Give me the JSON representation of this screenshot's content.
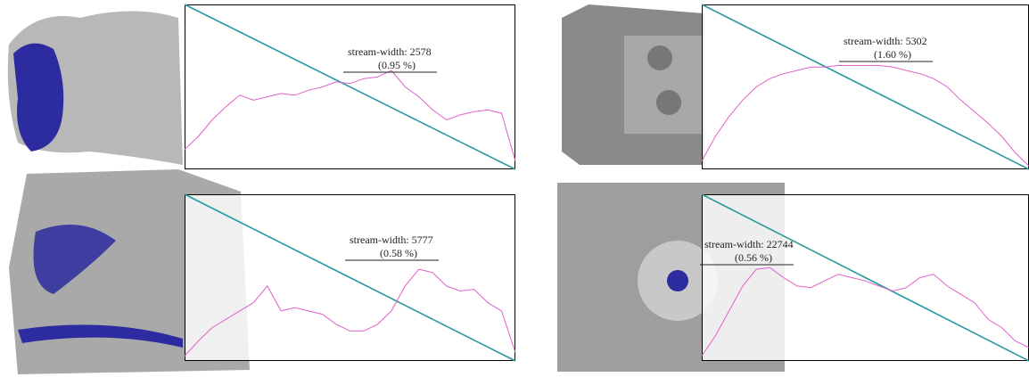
{
  "chart_data": [
    {
      "type": "line",
      "annotation": [
        "stream-width: 2578",
        "(0.95 %)"
      ],
      "ylim": [
        0,
        1
      ],
      "reference_line": {
        "color": "#2a9a9c",
        "values": [
          1,
          0
        ]
      },
      "series": [
        {
          "color": "#e060c8",
          "values": [
            0.12,
            0.2,
            0.3,
            0.38,
            0.45,
            0.42,
            0.44,
            0.46,
            0.45,
            0.48,
            0.5,
            0.53,
            0.52,
            0.55,
            0.56,
            0.6,
            0.5,
            0.44,
            0.36,
            0.3,
            0.33,
            0.35,
            0.36,
            0.34,
            0.05
          ]
        }
      ]
    },
    {
      "type": "line",
      "annotation": [
        "stream-width: 5302",
        "(1.60 %)"
      ],
      "ylim": [
        0,
        1
      ],
      "reference_line": {
        "color": "#2a9a9c",
        "values": [
          1,
          0
        ]
      },
      "series": [
        {
          "color": "#e060c8",
          "values": [
            0.05,
            0.2,
            0.32,
            0.42,
            0.5,
            0.55,
            0.58,
            0.6,
            0.62,
            0.62,
            0.63,
            0.63,
            0.63,
            0.63,
            0.62,
            0.6,
            0.58,
            0.55,
            0.5,
            0.42,
            0.35,
            0.28,
            0.2,
            0.1,
            0.02
          ]
        }
      ]
    },
    {
      "type": "line",
      "annotation": [
        "stream-width: 5777",
        "(0.58 %)"
      ],
      "ylim": [
        0,
        1
      ],
      "reference_line": {
        "color": "#2a9a9c",
        "values": [
          1,
          0
        ]
      },
      "series": [
        {
          "color": "#e060c8",
          "values": [
            0.03,
            0.12,
            0.2,
            0.25,
            0.3,
            0.35,
            0.45,
            0.3,
            0.32,
            0.3,
            0.28,
            0.22,
            0.18,
            0.18,
            0.22,
            0.3,
            0.45,
            0.55,
            0.53,
            0.45,
            0.42,
            0.43,
            0.35,
            0.3,
            0.05
          ]
        }
      ]
    },
    {
      "type": "line",
      "annotation": [
        "stream-width: 22744",
        "(0.56 %)"
      ],
      "ylim": [
        0,
        1
      ],
      "reference_line": {
        "color": "#2a9a9c",
        "values": [
          1,
          0
        ]
      },
      "series": [
        {
          "color": "#e060c8",
          "values": [
            0.03,
            0.15,
            0.3,
            0.45,
            0.55,
            0.56,
            0.5,
            0.45,
            0.44,
            0.48,
            0.52,
            0.5,
            0.48,
            0.45,
            0.42,
            0.44,
            0.5,
            0.52,
            0.45,
            0.4,
            0.35,
            0.25,
            0.2,
            0.12,
            0.08
          ]
        }
      ]
    }
  ]
}
